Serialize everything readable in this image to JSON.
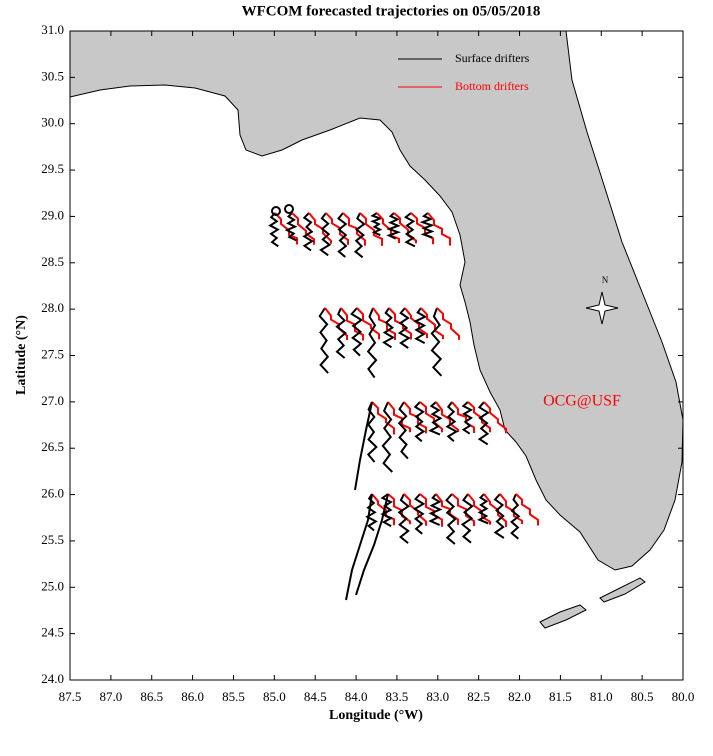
{
  "chart_data": {
    "type": "map",
    "title": "WFCOM forecasted trajectories on 05/05/2018",
    "x_label": "Longitude (°W)",
    "y_label": "Latitude (°N)",
    "xlim": [
      87.5,
      80.0
    ],
    "ylim": [
      24.0,
      31.0
    ],
    "xticks": [
      87.5,
      {
        "value": 87,
        "label": "87.0"
      },
      86.5,
      {
        "value": 86,
        "label": "86.0"
      },
      85.5,
      {
        "value": 85,
        "label": "85.0"
      },
      84.5,
      {
        "value": 84,
        "label": "84.0"
      },
      83.5,
      {
        "value": 83,
        "label": "83.0"
      },
      82.5,
      {
        "value": 82,
        "label": "82.0"
      },
      81.5,
      {
        "value": 81,
        "label": "81.0"
      },
      80.5,
      {
        "value": 80,
        "label": "80.0"
      }
    ],
    "yticks": [
      {
        "value": 24,
        "label": "24.0"
      },
      24.5,
      {
        "value": 25,
        "label": "25.0"
      },
      25.5,
      {
        "value": 26,
        "label": "26.0"
      },
      26.5,
      {
        "value": 27,
        "label": "27.0"
      },
      27.5,
      {
        "value": 28,
        "label": "28.0"
      },
      28.5,
      {
        "value": 29,
        "label": "29.0"
      },
      29.5,
      {
        "value": 30,
        "label": "30.0"
      },
      30.5,
      {
        "value": 31,
        "label": "31.0"
      }
    ],
    "series": [
      {
        "name": "Surface drifters",
        "color": "#000000"
      },
      {
        "name": "Bottom drifters",
        "color": "#ff0000"
      }
    ],
    "annotation": "OCG@USF",
    "compass_label": "N",
    "land_color": "#c8c8c8"
  }
}
